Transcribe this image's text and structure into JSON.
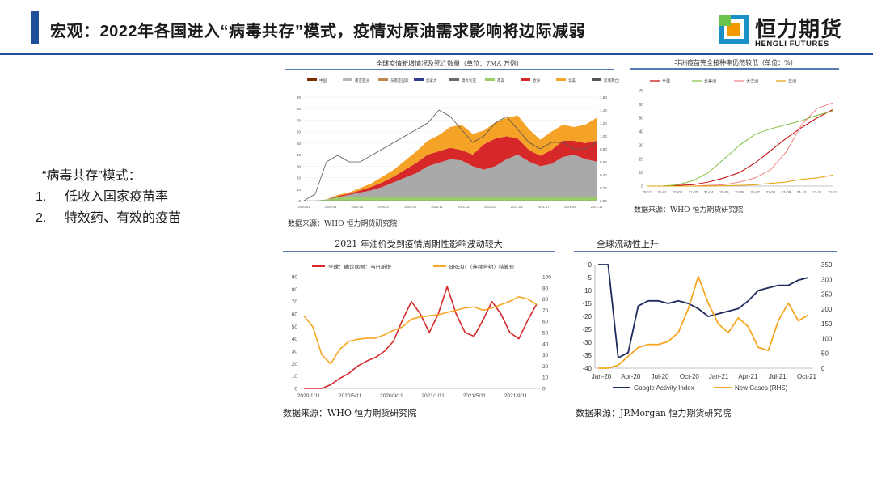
{
  "slide": {
    "title": "宏观：2022年各国进入“病毒共存”模式，疫情对原油需求影响将边际减弱",
    "logo_cn": "恒力期货",
    "logo_en": "HENGLI FUTURES",
    "bullet_heading": "“病毒共存”模式：",
    "bullets": [
      {
        "num": "1.",
        "text": "低收入国家疫苗率"
      },
      {
        "num": "2.",
        "text": "特效药、有效的疫苗"
      }
    ],
    "accent": "#1f4e9a"
  },
  "chart_data": [
    {
      "id": "chart1",
      "type": "area",
      "title": "全球疫情新增情况及死亡数量（单位：7MA 万例）",
      "legend": [
        "中国",
        "南亚亚洲",
        "东南亚国家",
        "加拿大",
        "澳大利亚",
        "南美",
        "欧洲",
        "北美",
        "新增死亡数"
      ],
      "colors": [
        "#7a2b00",
        "#b7b7b7",
        "#c0864a",
        "#2f3b8f",
        "#6b6b6b",
        "#9ccc6a",
        "#d62828",
        "#f4a326",
        "#555555"
      ],
      "ylim_left": [
        0,
        90
      ],
      "yticks_left": [
        "90",
        "80",
        "70",
        "60",
        "50",
        "40",
        "30",
        "20",
        "10",
        "0"
      ],
      "ylim_right": [
        0,
        1.6
      ],
      "yticks_right": [
        "1.60",
        "1.40",
        "1.20",
        "1.00",
        "0.80",
        "0.60",
        "0.40",
        "0.20",
        "0.00"
      ],
      "xticks": [
        "2020-01",
        "2020-03",
        "2020-05",
        "2020-07",
        "2020-09",
        "2020-11",
        "2021-01",
        "2021-03",
        "2021-05",
        "2021-07",
        "2021-09",
        "2021-11"
      ],
      "stack_series": {
        "gray": [
          0,
          0,
          1,
          3,
          5,
          7,
          9,
          12,
          16,
          20,
          24,
          30,
          33,
          36,
          35,
          30,
          27,
          30,
          36,
          40,
          34,
          30,
          32,
          38,
          40,
          36,
          34
        ],
        "red": [
          0,
          0,
          0,
          1,
          1,
          2,
          3,
          4,
          5,
          7,
          9,
          10,
          10,
          10,
          9,
          10,
          22,
          24,
          20,
          14,
          10,
          9,
          12,
          14,
          12,
          14,
          18
        ],
        "orange": [
          0,
          0,
          0,
          1,
          1,
          2,
          3,
          5,
          6,
          8,
          10,
          12,
          14,
          18,
          22,
          18,
          12,
          14,
          16,
          20,
          18,
          14,
          16,
          14,
          12,
          16,
          20
        ],
        "deaths": [
          0,
          0.1,
          0.6,
          0.7,
          0.6,
          0.6,
          0.7,
          0.8,
          0.9,
          1.0,
          1.1,
          1.2,
          1.4,
          1.3,
          1.1,
          0.9,
          1.0,
          1.2,
          1.3,
          1.1,
          0.9,
          0.8,
          0.9,
          0.9,
          0.8,
          0.8,
          0.9
        ]
      },
      "source": "数据来源：WHO  恒力期货研究院"
    },
    {
      "id": "chart2",
      "type": "line",
      "title": "非洲疫苗完全接种率仍然较低（单位：%）",
      "legend": [
        "全球",
        "北美洲",
        "大洋洲",
        "非洲"
      ],
      "colors": [
        "#c00000",
        "#7fbf3f",
        "#f08080",
        "#e3a008"
      ],
      "ylim": [
        0,
        70
      ],
      "yticks": [
        "70",
        "60",
        "50",
        "40",
        "30",
        "20",
        "10",
        "0"
      ],
      "xticks": [
        "20-12",
        "21-01",
        "21-02",
        "21-03",
        "21-04",
        "21-05",
        "21-06",
        "21-07",
        "21-08",
        "21-09",
        "21-10",
        "21-11",
        "21-12"
      ],
      "series": [
        {
          "name": "全球",
          "values": [
            0,
            0,
            0.5,
            1,
            3,
            6,
            10,
            17,
            26,
            35,
            43,
            50,
            56
          ]
        },
        {
          "name": "北美洲",
          "values": [
            0,
            0,
            1,
            4,
            10,
            20,
            30,
            38,
            42,
            45,
            48,
            52,
            55
          ]
        },
        {
          "name": "大洋洲",
          "values": [
            0,
            0,
            0,
            0,
            0.5,
            1,
            3,
            6,
            12,
            25,
            45,
            57,
            61
          ]
        },
        {
          "name": "非洲",
          "values": [
            0,
            0,
            0,
            0,
            0,
            0.2,
            0.5,
            1,
            2,
            3,
            5,
            6,
            8
          ]
        }
      ],
      "source": "数据来源：WHO  恒力期货研究院"
    },
    {
      "id": "chart3",
      "type": "line",
      "title": "2021 年油价受到疫情周期性影响波动较大",
      "legend": [
        "全球：确诊病例：当日新增",
        "BRENT（连续合约）结算价"
      ],
      "colors": [
        "#d62828",
        "#f5a623"
      ],
      "ylim_left": [
        0,
        90
      ],
      "yticks_left": [
        "90",
        "80",
        "70",
        "60",
        "50",
        "40",
        "30",
        "20",
        "10",
        "0"
      ],
      "ylim_right": [
        0,
        100
      ],
      "yticks_right": [
        "100",
        "90",
        "80",
        "70",
        "60",
        "50",
        "40",
        "30",
        "20",
        "10",
        "0"
      ],
      "xticks": [
        "2020/1/11",
        "2020/5/11",
        "2020/9/11",
        "2021/1/11",
        "2021/5/11",
        "2021/9/11"
      ],
      "series": [
        {
          "name": "全球：确诊病例：当日新增",
          "axis": "left",
          "values": [
            0,
            0,
            0,
            3,
            8,
            12,
            18,
            22,
            25,
            30,
            38,
            55,
            70,
            60,
            45,
            60,
            82,
            60,
            45,
            42,
            55,
            70,
            60,
            45,
            40,
            55,
            68
          ]
        },
        {
          "name": "BRENT（连续合约）结算价",
          "axis": "right",
          "values": [
            65,
            55,
            30,
            22,
            35,
            42,
            44,
            45,
            45,
            48,
            52,
            55,
            62,
            64,
            65,
            66,
            68,
            70,
            72,
            73,
            70,
            72,
            75,
            78,
            82,
            80,
            75
          ]
        }
      ],
      "source": "数据来源：WHO  恒力期货研究院"
    },
    {
      "id": "chart4",
      "type": "line",
      "title": "全球流动性上升",
      "legend": [
        "Google Activity Index",
        "New Cases (RHS)"
      ],
      "colors": [
        "#1f2a5c",
        "#f5a623"
      ],
      "ylim_left": [
        -40,
        0
      ],
      "yticks_left": [
        "0",
        "-5",
        "-10",
        "-15",
        "-20",
        "-25",
        "-30",
        "-35",
        "-40"
      ],
      "ylim_right": [
        0,
        350
      ],
      "yticks_right": [
        "350",
        "300",
        "250",
        "200",
        "150",
        "100",
        "50",
        "0"
      ],
      "xticks": [
        "Jan-20",
        "Apr-20",
        "Jul-20",
        "Oct-20",
        "Jan-21",
        "Apr-21",
        "Jul-21",
        "Oct-21"
      ],
      "series": [
        {
          "name": "Google Activity Index",
          "axis": "left",
          "values": [
            0,
            0,
            -36,
            -34,
            -16,
            -14,
            -14,
            -15,
            -14,
            -15,
            -17,
            -20,
            -19,
            -18,
            -17,
            -14,
            -10,
            -9,
            -8,
            -8,
            -6,
            -5
          ]
        },
        {
          "name": "New Cases (RHS)",
          "axis": "right",
          "values": [
            0,
            0,
            10,
            40,
            70,
            80,
            80,
            90,
            120,
            200,
            310,
            220,
            150,
            120,
            170,
            140,
            70,
            60,
            160,
            220,
            160,
            180
          ]
        }
      ],
      "source": "数据来源：JP.Morgan  恒力期货研究院"
    }
  ]
}
